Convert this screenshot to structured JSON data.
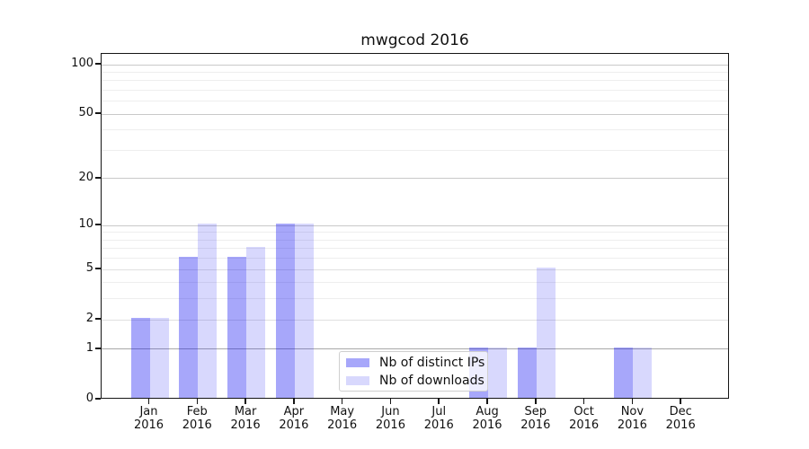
{
  "chart_data": {
    "type": "bar",
    "title": "mwgcod 2016",
    "categories": [
      "Jan",
      "Feb",
      "Mar",
      "Apr",
      "May",
      "Jun",
      "Jul",
      "Aug",
      "Sep",
      "Oct",
      "Nov",
      "Dec"
    ],
    "year": "2016",
    "series": [
      {
        "name": "Nb of distinct IPs",
        "color": "rgba(10,10,240,0.36)",
        "values": [
          2,
          6,
          6,
          10,
          0,
          0,
          0,
          1,
          1,
          0,
          1,
          0
        ]
      },
      {
        "name": "Nb of downloads",
        "color": "rgba(10,10,240,0.16)",
        "values": [
          2,
          10,
          7,
          10,
          0,
          0,
          0,
          1,
          5,
          0,
          1,
          0
        ]
      }
    ],
    "y_axis": {
      "scale": "log1p",
      "ticks": [
        0,
        1,
        2,
        5,
        10,
        20,
        50,
        100
      ],
      "tick_labels": [
        "0",
        "1",
        "2",
        "5",
        "10",
        "20",
        "50",
        "100"
      ],
      "minor_ticks": [
        3,
        4,
        6,
        7,
        8,
        9,
        30,
        40,
        60,
        70,
        80,
        90
      ],
      "ylim": [
        0,
        116
      ]
    },
    "x_axis": {
      "label_line2": "2016"
    },
    "grid": true,
    "grid_colors": {
      "baseline_one": "#a8a8a8",
      "major_strong": "#c9c9c9",
      "major_soft": "#e0e0e0",
      "minor": "#eeeeee"
    },
    "legend": {
      "position": "lower center-right, overlapping Aug bars",
      "entries": [
        "Nb of distinct IPs",
        "Nb of downloads"
      ]
    }
  }
}
